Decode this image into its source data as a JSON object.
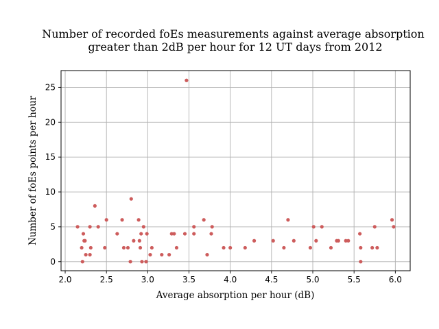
{
  "chart_data": {
    "type": "scatter",
    "title_lines": [
      "Number of recorded foEs measurements against average absorption",
      "greater than 2dB per hour for 12 UT days from 2012"
    ],
    "xlabel": "Average absorption per hour (dB)",
    "ylabel": "Number of foEs points per hour",
    "xlim": [
      1.95,
      6.18
    ],
    "ylim": [
      -1.3,
      27.4
    ],
    "xticks": [
      2.0,
      2.5,
      3.0,
      3.5,
      4.0,
      4.5,
      5.0,
      5.5,
      6.0
    ],
    "xtick_labels": [
      "2.0",
      "2.5",
      "3.0",
      "3.5",
      "4.0",
      "4.5",
      "5.0",
      "5.5",
      "6.0"
    ],
    "yticks": [
      0,
      5,
      10,
      15,
      20,
      25
    ],
    "ytick_labels": [
      "0",
      "5",
      "10",
      "15",
      "20",
      "25"
    ],
    "grid": true,
    "marker_color": "#cd5c5c",
    "points": [
      [
        2.15,
        5
      ],
      [
        2.2,
        2
      ],
      [
        2.21,
        0
      ],
      [
        2.22,
        4
      ],
      [
        2.23,
        3
      ],
      [
        2.24,
        3
      ],
      [
        2.25,
        1
      ],
      [
        2.3,
        5
      ],
      [
        2.3,
        1
      ],
      [
        2.31,
        2
      ],
      [
        2.36,
        8
      ],
      [
        2.4,
        5
      ],
      [
        2.48,
        2
      ],
      [
        2.5,
        6
      ],
      [
        2.63,
        4
      ],
      [
        2.69,
        6
      ],
      [
        2.71,
        2
      ],
      [
        2.76,
        2
      ],
      [
        2.79,
        0
      ],
      [
        2.8,
        9
      ],
      [
        2.83,
        3
      ],
      [
        2.89,
        6
      ],
      [
        2.9,
        3
      ],
      [
        2.91,
        2
      ],
      [
        2.92,
        4
      ],
      [
        2.93,
        0
      ],
      [
        2.95,
        5
      ],
      [
        2.98,
        0
      ],
      [
        2.99,
        4
      ],
      [
        3.03,
        1
      ],
      [
        3.05,
        2
      ],
      [
        3.17,
        1
      ],
      [
        3.26,
        1
      ],
      [
        3.29,
        4
      ],
      [
        3.32,
        4
      ],
      [
        3.35,
        2
      ],
      [
        3.45,
        4
      ],
      [
        3.47,
        26
      ],
      [
        3.56,
        5
      ],
      [
        3.56,
        4
      ],
      [
        3.68,
        6
      ],
      [
        3.72,
        1
      ],
      [
        3.77,
        4
      ],
      [
        3.78,
        5
      ],
      [
        3.92,
        2
      ],
      [
        4.0,
        2
      ],
      [
        4.18,
        2
      ],
      [
        4.29,
        3
      ],
      [
        4.52,
        3
      ],
      [
        4.65,
        2
      ],
      [
        4.7,
        6
      ],
      [
        4.77,
        3
      ],
      [
        4.97,
        2
      ],
      [
        5.01,
        5
      ],
      [
        5.04,
        3
      ],
      [
        5.11,
        5
      ],
      [
        5.22,
        2
      ],
      [
        5.29,
        3
      ],
      [
        5.31,
        3
      ],
      [
        5.4,
        3
      ],
      [
        5.43,
        3
      ],
      [
        5.57,
        4
      ],
      [
        5.58,
        0
      ],
      [
        5.58,
        2
      ],
      [
        5.72,
        2
      ],
      [
        5.75,
        5
      ],
      [
        5.78,
        2
      ],
      [
        5.96,
        6
      ],
      [
        5.98,
        5
      ]
    ]
  }
}
